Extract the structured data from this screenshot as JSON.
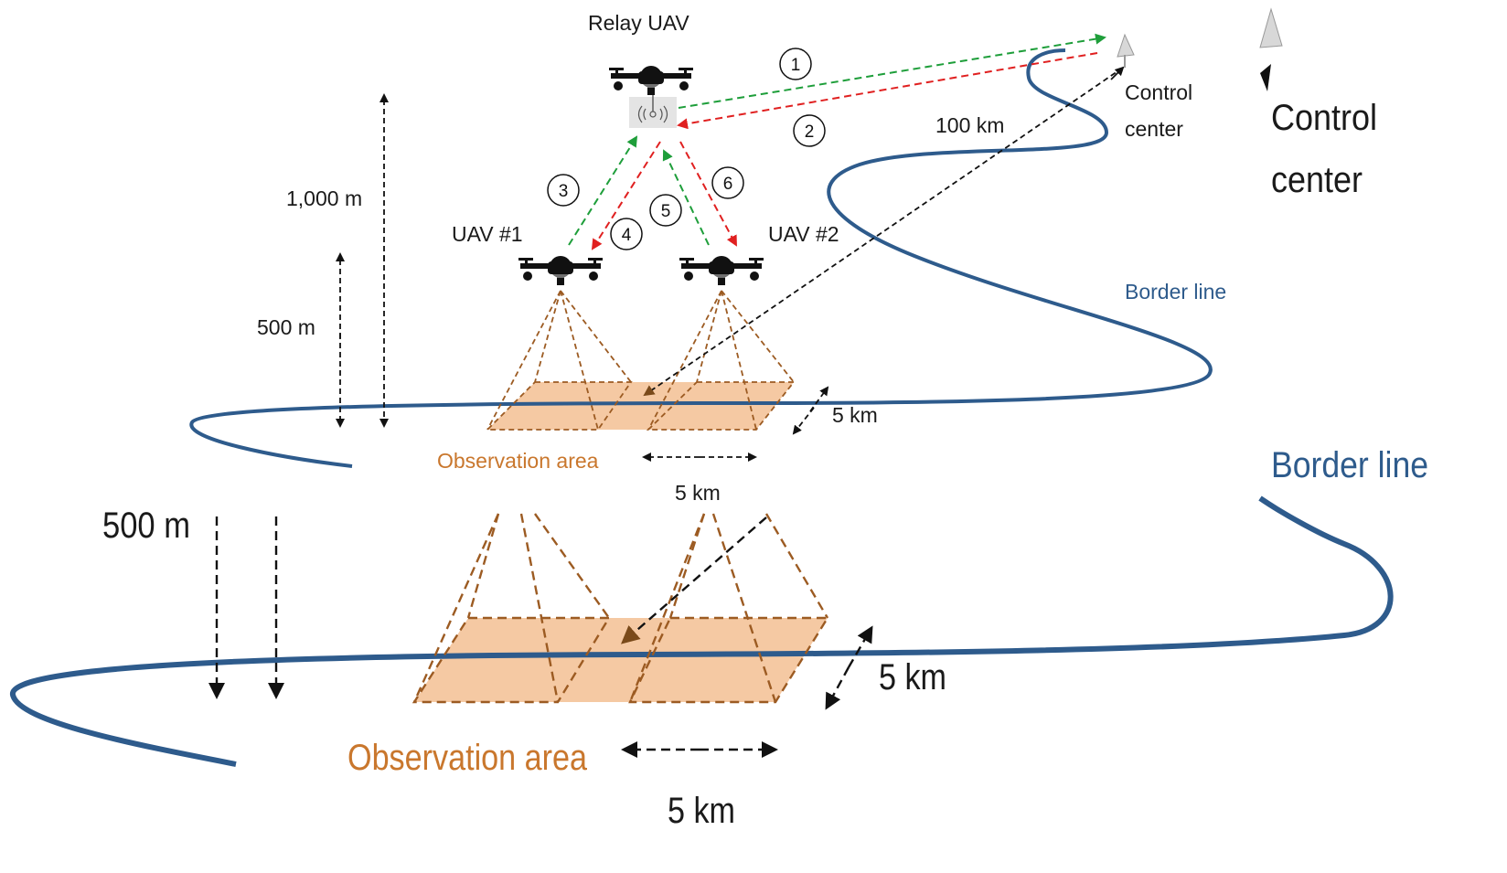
{
  "labels": {
    "relay_uav": "Relay UAV",
    "control_center_line1": "Control",
    "control_center_line2": "center",
    "distance_100km": "100 km",
    "uav1": "UAV #1",
    "uav2": "UAV #2",
    "border_line": "Border line",
    "altitude_1000m": "1,000 m",
    "altitude_500m": "500 m",
    "area_depth_5km": "5 km",
    "area_width_5km": "5 km",
    "observation_area": "Observation area"
  },
  "steps": [
    "1",
    "2",
    "3",
    "4",
    "5",
    "6"
  ],
  "colors": {
    "border": "#2e5b8c",
    "area_fill": "#f5c9a3",
    "cone": "#9c5b22",
    "uplink": "#1e9e3a",
    "downlink": "#e02020",
    "observation_text": "#c9772d"
  }
}
